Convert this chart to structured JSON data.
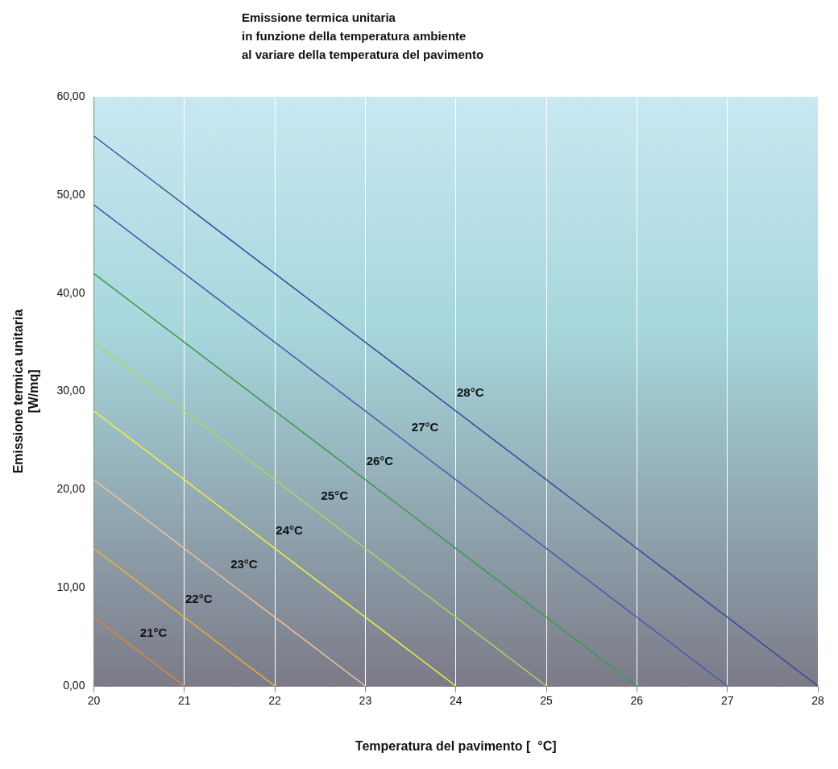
{
  "chart_data": {
    "type": "line",
    "title": "Emissione termica unitaria\nin funzione della temperatura ambiente\nal variare della temperatura del pavimento",
    "xlabel": "Temperatura del pavimento [  °C]",
    "ylabel": "Emissione termica unitaria\n[W/mq]",
    "xlim": [
      20,
      28
    ],
    "xticks": [
      20,
      21,
      22,
      23,
      24,
      25,
      26,
      27,
      28
    ],
    "ylim": [
      0,
      60
    ],
    "yticks": [
      {
        "value": 0,
        "label": "0,00"
      },
      {
        "value": 10,
        "label": "10,00"
      },
      {
        "value": 20,
        "label": "20,00"
      },
      {
        "value": 30,
        "label": "30,00"
      },
      {
        "value": 40,
        "label": "40,00"
      },
      {
        "value": 50,
        "label": "50,00"
      },
      {
        "value": 60,
        "label": "60,00"
      }
    ],
    "grid": "x",
    "legend": false,
    "marker": "none",
    "line_style": "solid",
    "series": [
      {
        "name": "21°C",
        "color": "#e0883a",
        "x": [
          20,
          21
        ],
        "values": [
          7,
          0
        ]
      },
      {
        "name": "22°C",
        "color": "#f0b038",
        "x": [
          20,
          21,
          22
        ],
        "values": [
          14,
          7,
          0
        ]
      },
      {
        "name": "23°C",
        "color": "#f0c0a0",
        "x": [
          20,
          21,
          22,
          23
        ],
        "values": [
          21,
          14,
          7,
          0
        ]
      },
      {
        "name": "24°C",
        "color": "#f0f040",
        "x": [
          20,
          21,
          22,
          23,
          24
        ],
        "values": [
          28,
          21,
          14,
          7,
          0
        ]
      },
      {
        "name": "25°C",
        "color": "#a8d860",
        "x": [
          20,
          21,
          22,
          23,
          24,
          25
        ],
        "values": [
          35,
          28,
          21,
          14,
          7,
          0
        ]
      },
      {
        "name": "26°C",
        "color": "#3a9a50",
        "x": [
          20,
          21,
          22,
          23,
          24,
          25,
          26
        ],
        "values": [
          42,
          35,
          28,
          21,
          14,
          7,
          0
        ]
      },
      {
        "name": "27°C",
        "color": "#4a5aa8",
        "x": [
          20,
          21,
          22,
          23,
          24,
          25,
          26,
          27
        ],
        "values": [
          49,
          42,
          35,
          28,
          21,
          14,
          7,
          0
        ]
      },
      {
        "name": "28°C",
        "color": "#3a4a98",
        "x": [
          20,
          21,
          22,
          23,
          24,
          25,
          26,
          27,
          28
        ],
        "values": [
          56,
          49,
          42,
          35,
          28,
          21,
          14,
          7,
          0
        ]
      }
    ]
  }
}
